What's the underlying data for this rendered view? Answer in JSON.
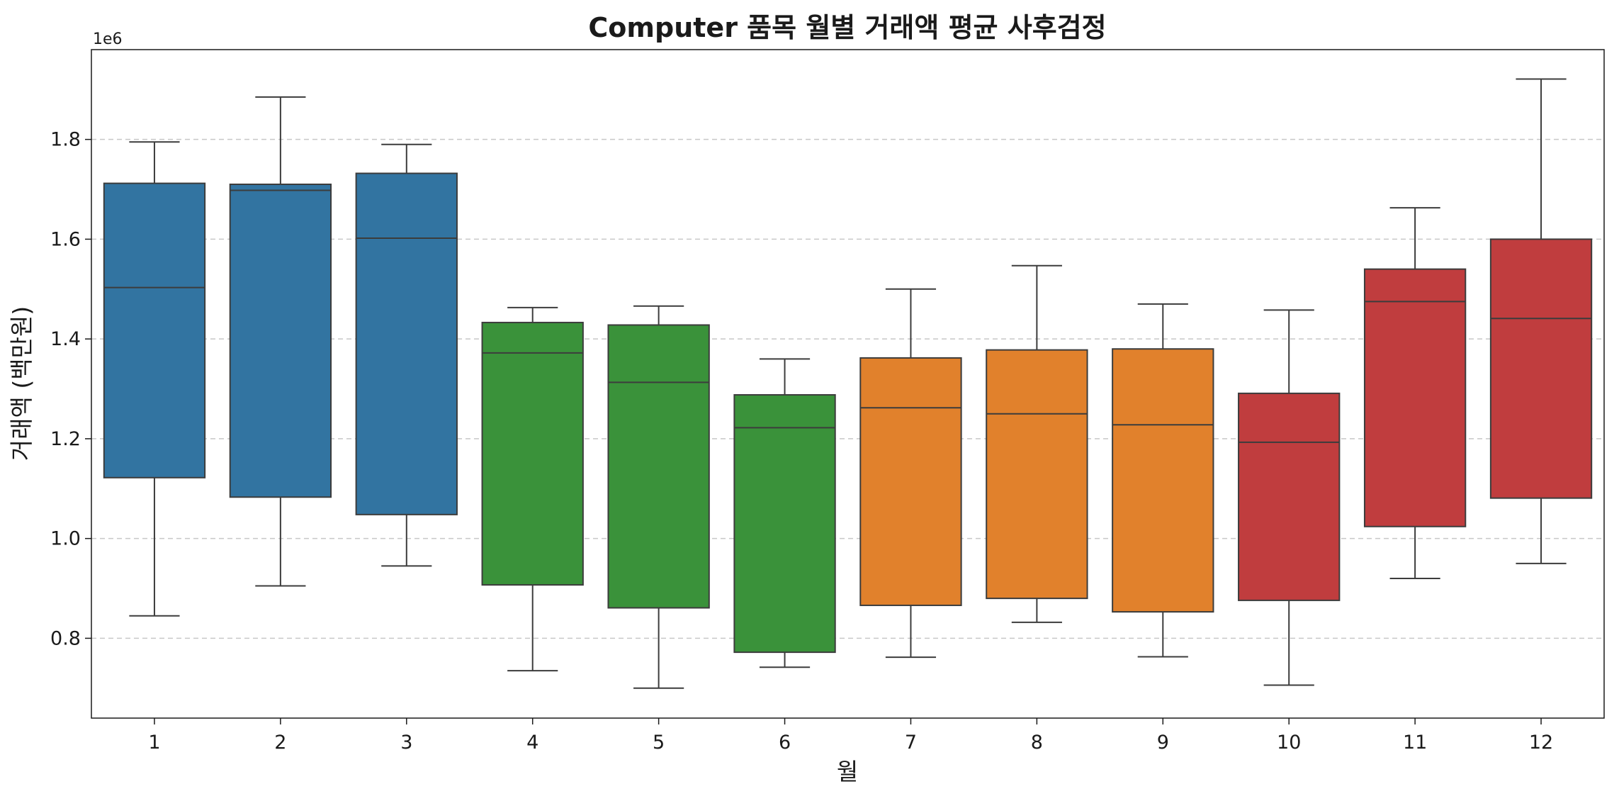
{
  "chart_data": {
    "type": "box",
    "title": "Computer 품목 월별 거래액 평균 사후검정",
    "xlabel": "월",
    "ylabel": "거래액 (백만원)",
    "y_offset_label": "1e6",
    "ylim": [
      640000,
      1980000
    ],
    "yticks": [
      800000,
      1000000,
      1200000,
      1400000,
      1600000,
      1800000
    ],
    "ytick_labels": [
      "0.8",
      "1.0",
      "1.2",
      "1.4",
      "1.6",
      "1.8"
    ],
    "grid": "horizontal dashed",
    "categories": [
      "1",
      "2",
      "3",
      "4",
      "5",
      "6",
      "7",
      "8",
      "9",
      "10",
      "11",
      "12"
    ],
    "boxes": [
      {
        "whislo": 845000,
        "q1": 1122000,
        "med": 1503000,
        "q3": 1712000,
        "whishi": 1795000,
        "color": "#3274a1"
      },
      {
        "whislo": 905000,
        "q1": 1083000,
        "med": 1698000,
        "q3": 1710000,
        "whishi": 1885000,
        "color": "#3274a1"
      },
      {
        "whislo": 945000,
        "q1": 1048000,
        "med": 1602000,
        "q3": 1732000,
        "whishi": 1790000,
        "color": "#3274a1"
      },
      {
        "whislo": 735000,
        "q1": 907000,
        "med": 1372000,
        "q3": 1433000,
        "whishi": 1463000,
        "color": "#3a923a"
      },
      {
        "whislo": 700000,
        "q1": 861000,
        "med": 1313000,
        "q3": 1428000,
        "whishi": 1466000,
        "color": "#3a923a"
      },
      {
        "whislo": 742000,
        "q1": 772000,
        "med": 1222000,
        "q3": 1288000,
        "whishi": 1360000,
        "color": "#3a923a"
      },
      {
        "whislo": 762000,
        "q1": 866000,
        "med": 1262000,
        "q3": 1362000,
        "whishi": 1500000,
        "color": "#e1812c"
      },
      {
        "whislo": 832000,
        "q1": 880000,
        "med": 1250000,
        "q3": 1378000,
        "whishi": 1547000,
        "color": "#e1812c"
      },
      {
        "whislo": 763000,
        "q1": 853000,
        "med": 1228000,
        "q3": 1380000,
        "whishi": 1470000,
        "color": "#e1812c"
      },
      {
        "whislo": 706000,
        "q1": 876000,
        "med": 1193000,
        "q3": 1291000,
        "whishi": 1458000,
        "color": "#c03d3e"
      },
      {
        "whislo": 920000,
        "q1": 1024000,
        "med": 1475000,
        "q3": 1540000,
        "whishi": 1663000,
        "color": "#c03d3e"
      },
      {
        "whislo": 950000,
        "q1": 1081000,
        "med": 1441000,
        "q3": 1600000,
        "whishi": 1921000,
        "color": "#c03d3e"
      }
    ],
    "colors": {
      "grid": "#c8c8c8",
      "frame": "#1a1a1a",
      "box_edge": "#3c3c3c"
    }
  }
}
